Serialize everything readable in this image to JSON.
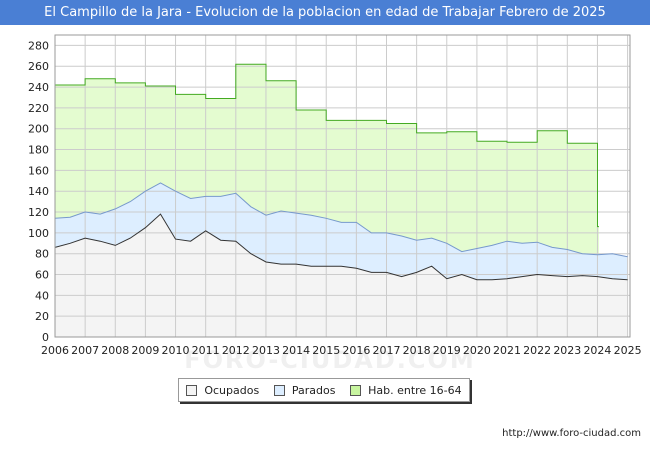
{
  "chart_data": {
    "type": "area",
    "title": "El Campillo de la Jara - Evolucion de la poblacion en edad de Trabajar Febrero de 2025",
    "xlabel": "",
    "ylabel": "",
    "xlim": [
      2006,
      2025.08
    ],
    "ylim": [
      0,
      290
    ],
    "yticks": [
      0,
      20,
      40,
      60,
      80,
      100,
      120,
      140,
      160,
      180,
      200,
      220,
      240,
      260,
      280
    ],
    "xticks": [
      2006,
      2007,
      2008,
      2009,
      2010,
      2011,
      2012,
      2013,
      2014,
      2015,
      2016,
      2017,
      2018,
      2019,
      2020,
      2021,
      2022,
      2023,
      2024,
      2025
    ],
    "grid": true,
    "legend_position": "bottom",
    "series": [
      {
        "name": "Hab. entre 16-64",
        "step": true,
        "x": [
          2006,
          2007,
          2008,
          2009,
          2010,
          2011,
          2012,
          2013,
          2014,
          2015,
          2016,
          2017,
          2018,
          2019,
          2020,
          2021,
          2022,
          2023,
          2024
        ],
        "values": [
          242,
          248,
          244,
          241,
          233,
          229,
          262,
          246,
          218,
          208,
          208,
          205,
          196,
          197,
          188,
          187,
          198,
          186,
          106
        ]
      },
      {
        "name": "Parados",
        "x": [
          2006,
          2006.5,
          2007,
          2007.5,
          2008,
          2008.5,
          2009,
          2009.5,
          2010,
          2010.5,
          2011,
          2011.5,
          2012,
          2012.5,
          2013,
          2013.5,
          2014,
          2014.5,
          2015,
          2015.5,
          2016,
          2016.5,
          2017,
          2017.5,
          2018,
          2018.5,
          2019,
          2019.5,
          2020,
          2020.5,
          2021,
          2021.5,
          2022,
          2022.5,
          2023,
          2023.5,
          2024,
          2024.5,
          2025
        ],
        "values": [
          114,
          115,
          120,
          118,
          123,
          130,
          140,
          148,
          140,
          133,
          135,
          135,
          138,
          125,
          117,
          121,
          119,
          117,
          114,
          110,
          110,
          100,
          100,
          97,
          93,
          95,
          90,
          82,
          85,
          88,
          92,
          90,
          91,
          86,
          84,
          80,
          79,
          80,
          77
        ]
      },
      {
        "name": "Ocupados",
        "x": [
          2006,
          2006.5,
          2007,
          2007.5,
          2008,
          2008.5,
          2009,
          2009.5,
          2010,
          2010.5,
          2011,
          2011.5,
          2012,
          2012.5,
          2013,
          2013.5,
          2014,
          2014.5,
          2015,
          2015.5,
          2016,
          2016.5,
          2017,
          2017.5,
          2018,
          2018.5,
          2019,
          2019.5,
          2020,
          2020.5,
          2021,
          2021.5,
          2022,
          2022.5,
          2023,
          2023.5,
          2024,
          2024.5,
          2025
        ],
        "values": [
          86,
          90,
          95,
          92,
          88,
          95,
          105,
          118,
          94,
          92,
          102,
          93,
          92,
          80,
          72,
          70,
          70,
          68,
          68,
          68,
          66,
          62,
          62,
          58,
          62,
          68,
          56,
          60,
          55,
          55,
          56,
          58,
          60,
          59,
          58,
          59,
          58,
          56,
          55
        ]
      }
    ]
  },
  "legend": [
    {
      "label": "Ocupados",
      "color": "#f4f4f4"
    },
    {
      "label": "Parados",
      "color": "#ddeeff"
    },
    {
      "label": "Hab. entre 16-64",
      "color": "#c8f5a0"
    }
  ],
  "source": "http://www.foro-ciudad.com",
  "watermark": "FORO-CIUDAD.COM",
  "colors": {
    "title_bg": "#4a7fd4",
    "hab_fill": "#e4fcd0",
    "hab_line": "#44aa22",
    "parados_fill": "#ddeeff",
    "parados_line": "#7799cc",
    "ocupados_fill": "#f4f4f4",
    "ocupados_line": "#333333"
  }
}
